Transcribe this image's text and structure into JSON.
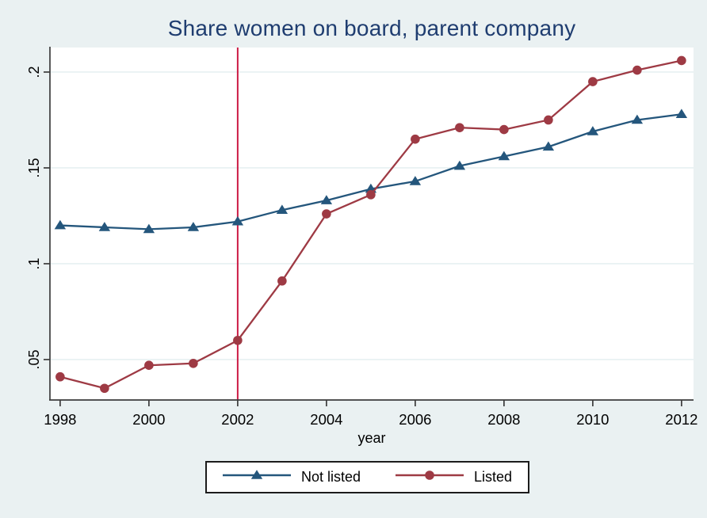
{
  "colors": {
    "background": "#eaf1f2",
    "plot_bg": "#ffffff",
    "grid": "#e2edef",
    "axis": "#3c3c3c",
    "text": "#000000",
    "title": "#1f3d70",
    "not_listed": "#24567c",
    "listed": "#9e3a44",
    "reference_line": "#cc1b45",
    "legend_border": "#1c1c1c"
  },
  "chart_data": {
    "type": "line",
    "title": "Share women on board, parent company",
    "xlabel": "year",
    "ylabel": "",
    "x": [
      1998,
      1999,
      2000,
      2001,
      2002,
      2003,
      2004,
      2005,
      2006,
      2007,
      2008,
      2009,
      2010,
      2011,
      2012
    ],
    "series": [
      {
        "name": "Not listed",
        "marker": "triangle",
        "color": "#24567c",
        "values": [
          0.12,
          0.119,
          0.118,
          0.119,
          0.122,
          0.128,
          0.133,
          0.139,
          0.143,
          0.151,
          0.156,
          0.161,
          0.169,
          0.175,
          0.178
        ]
      },
      {
        "name": "Listed",
        "marker": "circle",
        "color": "#9e3a44",
        "values": [
          0.041,
          0.035,
          0.047,
          0.048,
          0.06,
          0.091,
          0.126,
          0.136,
          0.165,
          0.171,
          0.17,
          0.175,
          0.195,
          0.201,
          0.206
        ]
      }
    ],
    "x_ticks": [
      1998,
      2000,
      2002,
      2004,
      2006,
      2008,
      2010,
      2012
    ],
    "y_ticks": [
      ".05",
      ".1",
      ".15",
      ".2"
    ],
    "y_tick_values": [
      0.05,
      0.1,
      0.15,
      0.2
    ],
    "xlim": [
      1997.77,
      2012.27
    ],
    "ylim": [
      0.0289,
      0.2128
    ],
    "grid": true,
    "legend_position": "bottom",
    "vline": {
      "x": 2002,
      "color": "#cc1b45"
    }
  }
}
